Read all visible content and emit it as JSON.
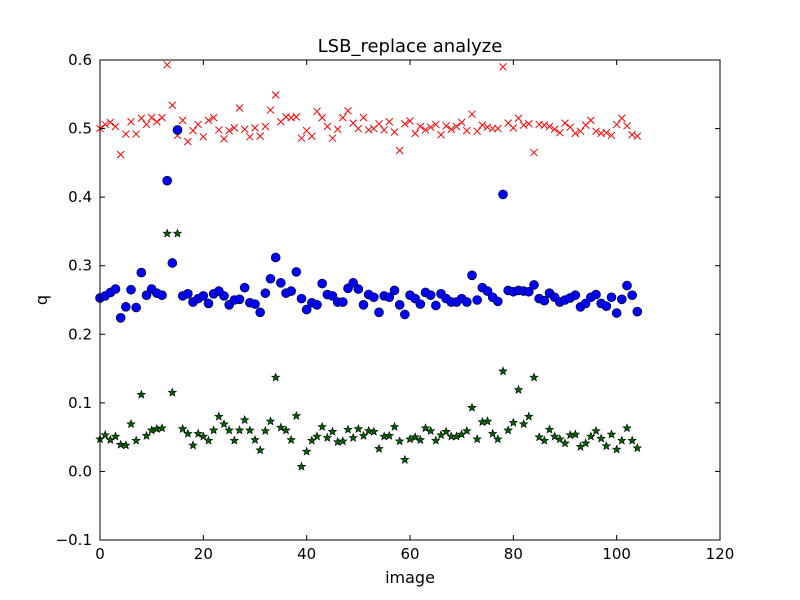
{
  "chart_data": {
    "type": "scatter",
    "title": "LSB_replace analyze",
    "xlabel": "image",
    "ylabel": "q",
    "xlim": [
      0,
      120
    ],
    "ylim": [
      -0.1,
      0.6
    ],
    "xticks": [
      0,
      20,
      40,
      60,
      80,
      100,
      120
    ],
    "yticks": [
      -0.1,
      0.0,
      0.1,
      0.2,
      0.3,
      0.4,
      0.5,
      0.6
    ],
    "xtick_labels": [
      "0",
      "20",
      "40",
      "60",
      "80",
      "100",
      "120"
    ],
    "ytick_labels": [
      "−0.1",
      "0.0",
      "0.1",
      "0.2",
      "0.3",
      "0.4",
      "0.5",
      "0.6"
    ],
    "grid": false,
    "series": [
      {
        "marker": "x",
        "color": "#ff0000",
        "x": [
          0,
          1,
          2,
          3,
          4,
          5,
          6,
          7,
          8,
          9,
          10,
          11,
          12,
          13,
          14,
          15,
          16,
          17,
          18,
          19,
          20,
          21,
          22,
          23,
          24,
          25,
          26,
          27,
          28,
          29,
          30,
          31,
          32,
          33,
          34,
          35,
          36,
          37,
          38,
          39,
          40,
          41,
          42,
          43,
          44,
          45,
          46,
          47,
          48,
          49,
          50,
          51,
          52,
          53,
          54,
          55,
          56,
          57,
          58,
          59,
          60,
          61,
          62,
          63,
          64,
          65,
          66,
          67,
          68,
          69,
          70,
          71,
          72,
          73,
          74,
          75,
          76,
          77,
          78,
          79,
          80,
          81,
          82,
          83,
          84,
          85,
          86,
          87,
          88,
          89,
          90,
          91,
          92,
          93,
          94,
          95,
          96,
          97,
          98,
          99,
          100,
          101,
          102,
          103,
          104
        ],
        "y": [
          0.5,
          0.506,
          0.509,
          0.503,
          0.462,
          0.492,
          0.51,
          0.492,
          0.515,
          0.506,
          0.516,
          0.51,
          0.516,
          0.593,
          0.534,
          0.49,
          0.512,
          0.481,
          0.497,
          0.506,
          0.488,
          0.512,
          0.516,
          0.498,
          0.485,
          0.497,
          0.501,
          0.53,
          0.499,
          0.488,
          0.501,
          0.489,
          0.503,
          0.527,
          0.549,
          0.51,
          0.517,
          0.516,
          0.517,
          0.486,
          0.497,
          0.489,
          0.525,
          0.516,
          0.503,
          0.486,
          0.499,
          0.516,
          0.526,
          0.508,
          0.5,
          0.516,
          0.498,
          0.5,
          0.507,
          0.498,
          0.51,
          0.495,
          0.468,
          0.507,
          0.511,
          0.493,
          0.503,
          0.498,
          0.502,
          0.506,
          0.491,
          0.504,
          0.499,
          0.503,
          0.509,
          0.497,
          0.521,
          0.496,
          0.505,
          0.502,
          0.5,
          0.5,
          0.59,
          0.508,
          0.501,
          0.515,
          0.505,
          0.507,
          0.465,
          0.506,
          0.505,
          0.503,
          0.499,
          0.494,
          0.508,
          0.502,
          0.493,
          0.496,
          0.505,
          0.512,
          0.496,
          0.493,
          0.494,
          0.49,
          0.506,
          0.515,
          0.504,
          0.491,
          0.489
        ]
      },
      {
        "marker": "circle",
        "color": "#0000ff",
        "x": [
          0,
          1,
          2,
          3,
          4,
          5,
          6,
          7,
          8,
          9,
          10,
          11,
          12,
          13,
          14,
          15,
          16,
          17,
          18,
          19,
          20,
          21,
          22,
          23,
          24,
          25,
          26,
          27,
          28,
          29,
          30,
          31,
          32,
          33,
          34,
          35,
          36,
          37,
          38,
          39,
          40,
          41,
          42,
          43,
          44,
          45,
          46,
          47,
          48,
          49,
          50,
          51,
          52,
          53,
          54,
          55,
          56,
          57,
          58,
          59,
          60,
          61,
          62,
          63,
          64,
          65,
          66,
          67,
          68,
          69,
          70,
          71,
          72,
          73,
          74,
          75,
          76,
          77,
          78,
          79,
          80,
          81,
          82,
          83,
          84,
          85,
          86,
          87,
          88,
          89,
          90,
          91,
          92,
          93,
          94,
          95,
          96,
          97,
          98,
          99,
          100,
          101,
          102,
          103,
          104
        ],
        "y": [
          0.253,
          0.256,
          0.261,
          0.266,
          0.224,
          0.24,
          0.265,
          0.239,
          0.29,
          0.257,
          0.266,
          0.26,
          0.257,
          0.424,
          0.304,
          0.498,
          0.256,
          0.259,
          0.247,
          0.252,
          0.256,
          0.245,
          0.259,
          0.263,
          0.256,
          0.243,
          0.25,
          0.251,
          0.268,
          0.246,
          0.244,
          0.232,
          0.26,
          0.281,
          0.312,
          0.275,
          0.26,
          0.263,
          0.291,
          0.252,
          0.236,
          0.246,
          0.243,
          0.274,
          0.258,
          0.256,
          0.247,
          0.247,
          0.267,
          0.275,
          0.266,
          0.243,
          0.258,
          0.254,
          0.232,
          0.256,
          0.254,
          0.264,
          0.243,
          0.229,
          0.257,
          0.252,
          0.244,
          0.261,
          0.257,
          0.242,
          0.259,
          0.252,
          0.247,
          0.247,
          0.252,
          0.247,
          0.286,
          0.25,
          0.268,
          0.263,
          0.254,
          0.248,
          0.404,
          0.264,
          0.262,
          0.264,
          0.263,
          0.262,
          0.272,
          0.252,
          0.249,
          0.26,
          0.254,
          0.247,
          0.25,
          0.253,
          0.257,
          0.24,
          0.245,
          0.254,
          0.258,
          0.245,
          0.241,
          0.254,
          0.231,
          0.251,
          0.271,
          0.257,
          0.233
        ]
      },
      {
        "marker": "star",
        "color": "#006400",
        "x": [
          0,
          1,
          2,
          3,
          4,
          5,
          6,
          7,
          8,
          9,
          10,
          11,
          12,
          13,
          14,
          15,
          16,
          17,
          18,
          19,
          20,
          21,
          22,
          23,
          24,
          25,
          26,
          27,
          28,
          29,
          30,
          31,
          32,
          33,
          34,
          35,
          36,
          37,
          38,
          39,
          40,
          41,
          42,
          43,
          44,
          45,
          46,
          47,
          48,
          49,
          50,
          51,
          52,
          53,
          54,
          55,
          56,
          57,
          58,
          59,
          60,
          61,
          62,
          63,
          64,
          65,
          66,
          67,
          68,
          69,
          70,
          71,
          72,
          73,
          74,
          75,
          76,
          77,
          78,
          79,
          80,
          81,
          82,
          83,
          84,
          85,
          86,
          87,
          88,
          89,
          90,
          91,
          92,
          93,
          94,
          95,
          96,
          97,
          98,
          99,
          100,
          101,
          102,
          103,
          104
        ],
        "y": [
          0.047,
          0.053,
          0.046,
          0.051,
          0.039,
          0.038,
          0.069,
          0.045,
          0.112,
          0.052,
          0.06,
          0.062,
          0.063,
          0.347,
          0.115,
          0.347,
          0.062,
          0.055,
          0.038,
          0.055,
          0.051,
          0.045,
          0.06,
          0.08,
          0.069,
          0.06,
          0.045,
          0.06,
          0.075,
          0.06,
          0.046,
          0.031,
          0.059,
          0.073,
          0.137,
          0.064,
          0.06,
          0.046,
          0.081,
          0.007,
          0.029,
          0.045,
          0.051,
          0.065,
          0.049,
          0.058,
          0.043,
          0.044,
          0.061,
          0.049,
          0.062,
          0.052,
          0.059,
          0.058,
          0.033,
          0.051,
          0.052,
          0.065,
          0.044,
          0.017,
          0.047,
          0.05,
          0.046,
          0.063,
          0.059,
          0.045,
          0.053,
          0.058,
          0.051,
          0.051,
          0.054,
          0.059,
          0.093,
          0.047,
          0.072,
          0.073,
          0.055,
          0.047,
          0.146,
          0.06,
          0.071,
          0.119,
          0.069,
          0.08,
          0.137,
          0.05,
          0.045,
          0.061,
          0.051,
          0.047,
          0.041,
          0.053,
          0.054,
          0.036,
          0.041,
          0.051,
          0.059,
          0.048,
          0.037,
          0.054,
          0.032,
          0.045,
          0.063,
          0.045,
          0.034
        ]
      }
    ]
  }
}
